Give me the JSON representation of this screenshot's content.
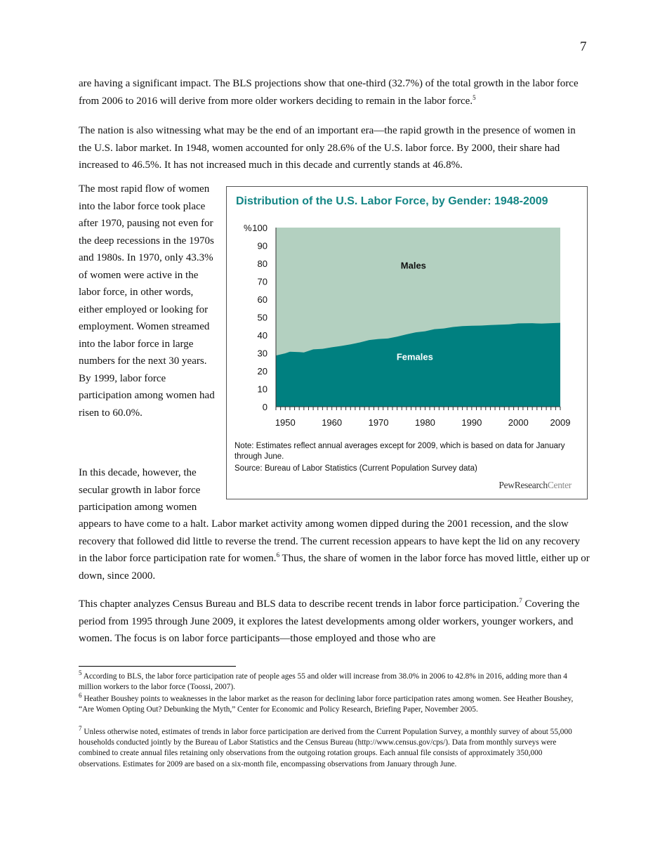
{
  "page_number": "7",
  "paragraphs": {
    "p1": "are having a significant impact. The BLS projections show that one-third (32.7%) of the total growth in the labor force from 2006 to 2016 will derive from more older workers deciding to remain in the labor force.",
    "p1_fn": "5",
    "p2": "The nation is also witnessing what may be the end of an important era—the rapid growth in the presence of women in the U.S. labor market. In 1948, women accounted for only 28.6% of the U.S. labor force. By 2000, their share had increased to 46.5%. It has not increased much in this decade and currently stands at 46.8%.",
    "lc1": "The most rapid flow of women into the labor force took place after 1970, pausing not even for the deep recessions in the 1970s and 1980s.  In 1970, only 43.3% of women were active in the labor force, in other words, either employed or looking for employment. Women streamed into the labor force in large numbers for the next 30 years. By 1999, labor force participation among women had risen to 60.0%.",
    "lc2": "In this decade, however, the secular growth in labor force participation among women",
    "p3a": "appears to have come to a halt. Labor market activity among women dipped during the 2001 recession, and the slow recovery that followed did little to reverse the trend. The current recession appears to have kept the lid on any recovery in the labor force participation rate for women.",
    "p3_fn": "6",
    "p3b": " Thus, the share of women in the labor force has moved little, either up or down, since 2000.",
    "p4a": "This chapter analyzes Census Bureau and BLS data to describe recent trends in labor force participation.",
    "p4_fn": "7",
    "p4b": " Covering the period from 1995 through June 2009, it explores the latest developments among older workers, younger workers, and women. The focus is on labor force participants—those employed and those who are"
  },
  "footnotes": [
    {
      "num": "5",
      "text": " According to BLS, the labor force participation rate of people ages 55 and older will increase from 38.0% in 2006 to 42.8% in 2016, adding more than 4 million workers to the labor force (Toossi, 2007)."
    },
    {
      "num": "6",
      "text": " Heather Boushey points to weaknesses in the labor market as the reason for declining labor force participation rates among women. See Heather Boushey, “Are Women Opting Out? Debunking the Myth,” Center for Economic and Policy Research, Briefing Paper, November 2005."
    },
    {
      "num": "7",
      "text": " Unless otherwise noted, estimates of trends in labor force participation are derived from the Current Population Survey, a monthly survey of about 55,000 households conducted jointly by the Bureau of Labor Statistics and the Census Bureau (http://www.census.gov/cps/). Data from monthly surveys were combined to create annual files retaining only observations from the outgoing rotation groups. Each annual file consists of approximately 350,000 observations. Estimates for 2009 are based on a six-month file, encompassing observations from January through June."
    }
  ],
  "chart": {
    "note": "Note: Estimates reflect annual averages except for 2009, which is based on data for January through June.",
    "source": "Source: Bureau of Labor Statistics (Current Population Survey data)",
    "logo_a": "PewResearch",
    "logo_b": "Center"
  },
  "chart_data": {
    "type": "area",
    "stacked": true,
    "title": "Distribution of the U.S. Labor Force, by Gender: 1948-2009",
    "ylabel": "%",
    "ylim": [
      0,
      100
    ],
    "xlim": [
      1948,
      2009
    ],
    "yticks": [
      "0",
      "10",
      "20",
      "30",
      "40",
      "50",
      "60",
      "70",
      "80",
      "90",
      "100"
    ],
    "xticks": [
      "1950",
      "1960",
      "1970",
      "1980",
      "1990",
      "2000",
      "2009"
    ],
    "grid": false,
    "legend": "inline labels",
    "x": [
      1948,
      1950,
      1951,
      1953,
      1954,
      1956,
      1958,
      1960,
      1962,
      1964,
      1966,
      1968,
      1970,
      1972,
      1974,
      1976,
      1978,
      1980,
      1982,
      1984,
      1986,
      1988,
      1990,
      1992,
      1994,
      1996,
      1998,
      2000,
      2003,
      2005,
      2009
    ],
    "series": [
      {
        "name": "Females",
        "color": "#008080",
        "values": [
          28.6,
          29.8,
          30.7,
          30.5,
          30.3,
          32.0,
          32.3,
          33.2,
          33.9,
          34.8,
          35.9,
          37.2,
          37.8,
          38.1,
          39.1,
          40.4,
          41.5,
          42.1,
          43.3,
          43.7,
          44.5,
          45.0,
          45.2,
          45.3,
          45.6,
          45.8,
          46.0,
          46.5,
          46.6,
          46.4,
          46.8
        ]
      },
      {
        "name": "Males",
        "color": "#b3d0c0",
        "fill_to": 100
      }
    ]
  }
}
